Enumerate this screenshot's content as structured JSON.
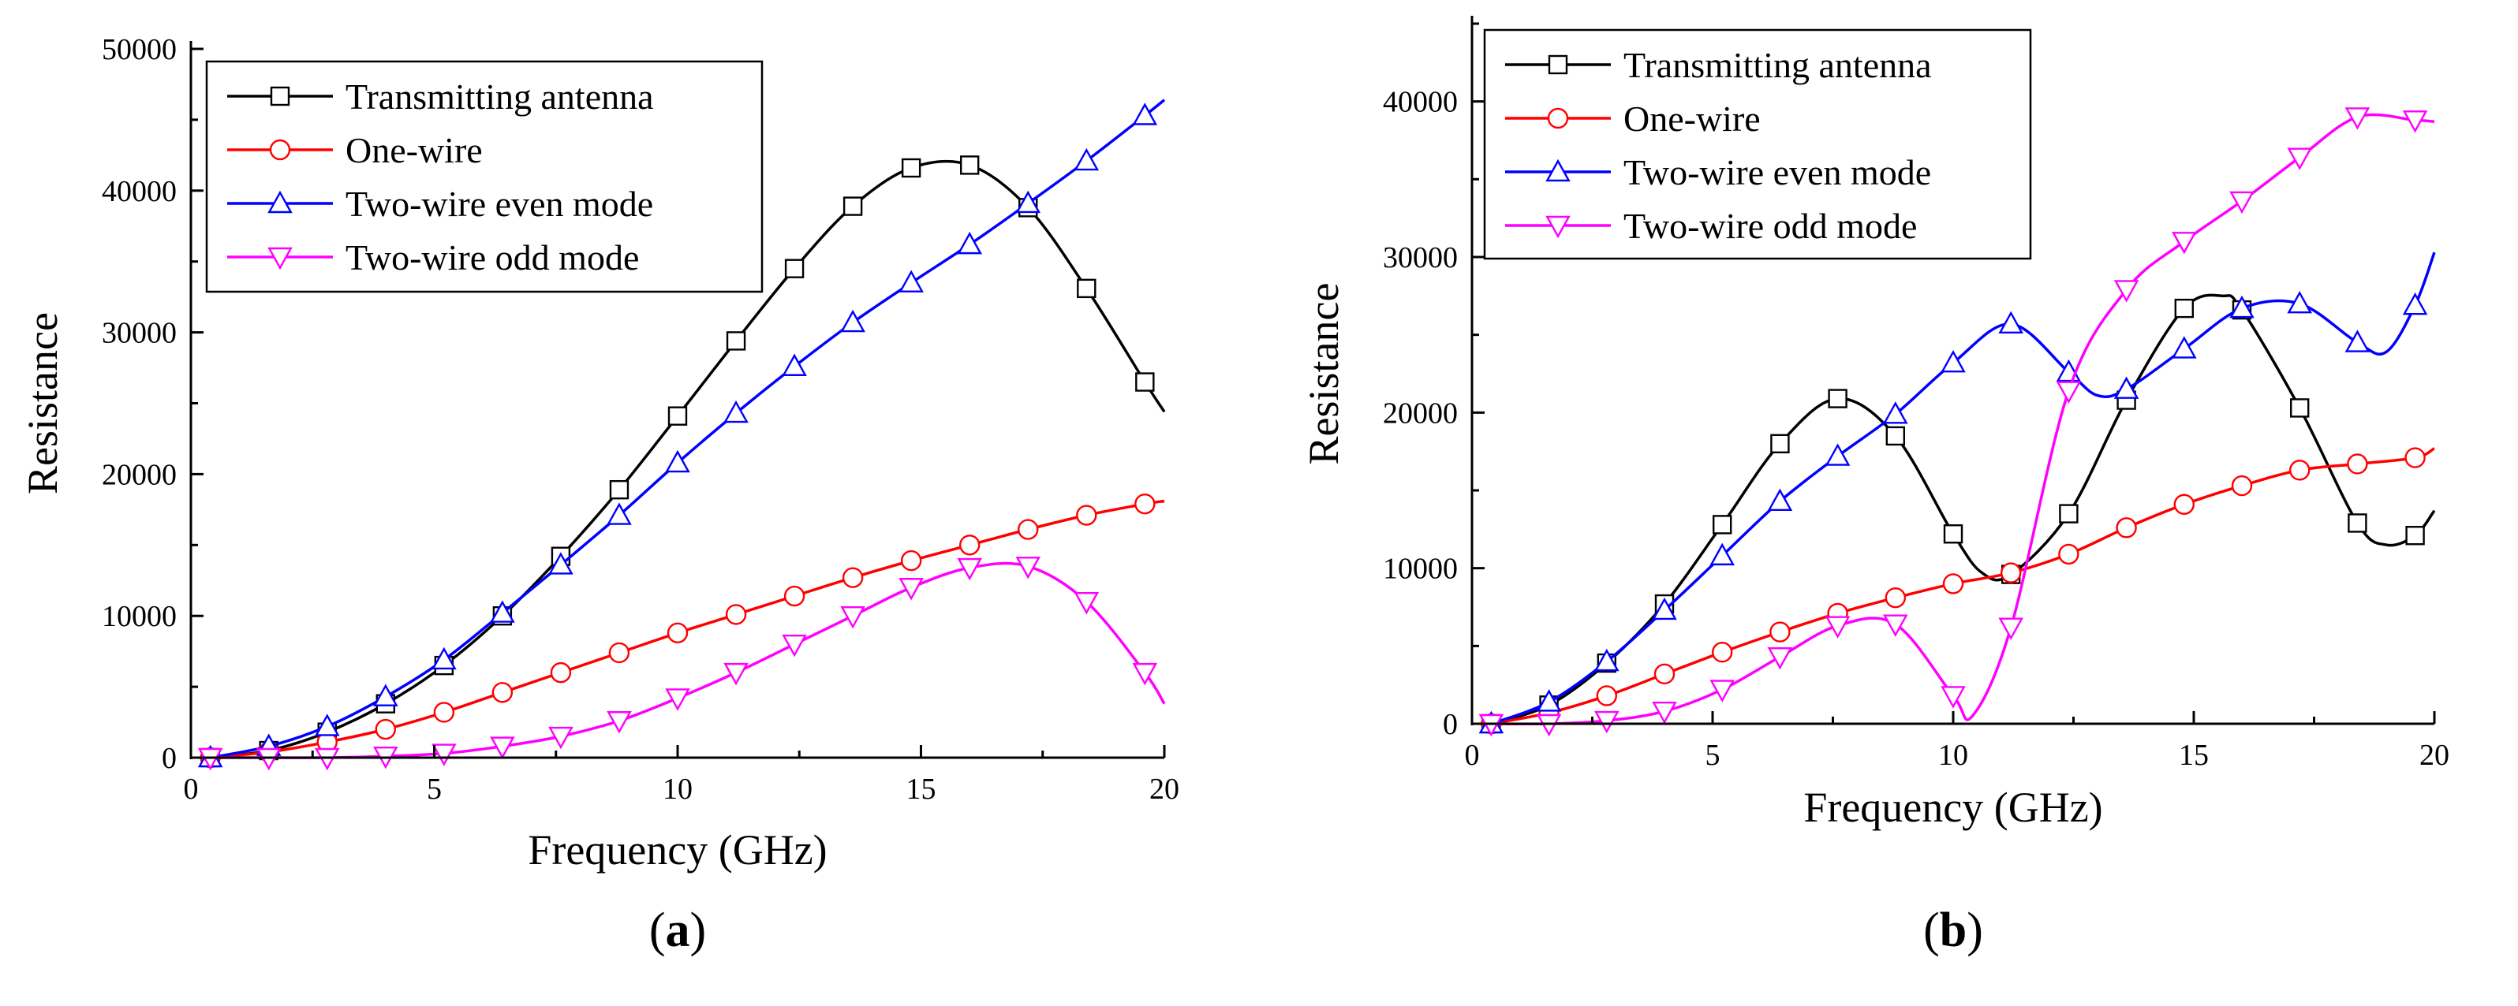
{
  "chart_data": [
    {
      "type": "line",
      "panel_label": "a",
      "xlabel": "Frequency (GHz)",
      "ylabel": "Resistance",
      "xlim": [
        0,
        20
      ],
      "ylim": [
        0,
        50000
      ],
      "x_ticks": [
        0,
        5,
        10,
        15,
        20
      ],
      "y_ticks": [
        0,
        10000,
        20000,
        30000,
        40000,
        50000
      ],
      "legend_position": "top-left",
      "series": [
        {
          "name": "Transmitting antenna",
          "color": "#000000",
          "marker": "square",
          "x": [
            0.4,
            1.6,
            2.8,
            4.0,
            5.2,
            6.4,
            7.6,
            8.8,
            10.0,
            11.2,
            12.4,
            13.6,
            14.8,
            16.0,
            17.2,
            18.4,
            19.6,
            20.0
          ],
          "y": [
            0,
            500,
            1800,
            3800,
            6500,
            10000,
            14200,
            18900,
            24100,
            29400,
            34500,
            38900,
            41600,
            41800,
            38800,
            33100,
            26500,
            24400
          ]
        },
        {
          "name": "One-wire",
          "color": "#ff0000",
          "marker": "circle",
          "x": [
            0.4,
            1.6,
            2.8,
            4.0,
            5.2,
            6.4,
            7.6,
            8.8,
            10.0,
            11.2,
            12.4,
            13.6,
            14.8,
            16.0,
            17.2,
            18.4,
            19.6,
            20.0
          ],
          "y": [
            0,
            400,
            1100,
            2000,
            3200,
            4600,
            6000,
            7400,
            8800,
            10100,
            11400,
            12700,
            13900,
            15000,
            16100,
            17100,
            17900,
            18100
          ]
        },
        {
          "name": "Two-wire even mode",
          "color": "#0000ff",
          "marker": "triangle-up",
          "x": [
            0.4,
            1.6,
            2.8,
            4.0,
            5.2,
            6.4,
            7.6,
            8.8,
            10.0,
            11.2,
            12.4,
            13.6,
            14.8,
            16.0,
            17.2,
            18.4,
            19.6,
            20.0
          ],
          "y": [
            0,
            800,
            2200,
            4300,
            6900,
            10200,
            13600,
            17100,
            20800,
            24300,
            27600,
            30700,
            33500,
            36200,
            39100,
            42100,
            45300,
            46400
          ]
        },
        {
          "name": "Two-wire odd mode",
          "color": "#ff00ff",
          "marker": "triangle-down",
          "x": [
            0.4,
            1.6,
            2.8,
            4.0,
            5.2,
            6.4,
            7.6,
            8.8,
            10.0,
            11.2,
            12.4,
            13.6,
            14.8,
            16.0,
            17.2,
            18.4,
            19.6,
            20.0
          ],
          "y": [
            0,
            0,
            0,
            100,
            300,
            800,
            1500,
            2600,
            4200,
            6000,
            8000,
            10000,
            12000,
            13400,
            13500,
            11000,
            6000,
            3800
          ]
        }
      ]
    },
    {
      "type": "line",
      "panel_label": "b",
      "xlabel": "Frequency (GHz)",
      "ylabel": "Resistance",
      "xlim": [
        0,
        20
      ],
      "ylim": [
        0,
        45000
      ],
      "x_ticks": [
        0,
        5,
        10,
        15,
        20
      ],
      "y_ticks": [
        0,
        10000,
        20000,
        30000,
        40000
      ],
      "legend_position": "top-left",
      "series": [
        {
          "name": "Transmitting antenna",
          "color": "#000000",
          "marker": "square",
          "x": [
            0.4,
            1.6,
            2.8,
            4.0,
            5.2,
            6.4,
            7.6,
            8.8,
            10.0,
            10.6,
            11.2,
            12.4,
            13.6,
            14.8,
            15.6,
            16.0,
            17.2,
            18.4,
            19.0,
            19.6,
            20.0
          ],
          "y": [
            0,
            1200,
            3900,
            7700,
            12800,
            18000,
            20900,
            18500,
            12200,
            9700,
            9600,
            13500,
            20800,
            26700,
            27500,
            26600,
            20300,
            12900,
            11500,
            12100,
            13700
          ]
        },
        {
          "name": "One-wire",
          "color": "#ff0000",
          "marker": "circle",
          "x": [
            0.4,
            1.6,
            2.8,
            4.0,
            5.2,
            6.4,
            7.6,
            8.8,
            10.0,
            11.2,
            12.4,
            13.6,
            14.8,
            16.0,
            17.2,
            18.4,
            19.6,
            20.0
          ],
          "y": [
            0,
            700,
            1800,
            3200,
            4600,
            5900,
            7100,
            8100,
            9000,
            9700,
            10900,
            12600,
            14100,
            15300,
            16300,
            16700,
            17100,
            17700
          ]
        },
        {
          "name": "Two-wire even mode",
          "color": "#0000ff",
          "marker": "triangle-up",
          "x": [
            0.4,
            1.6,
            2.8,
            4.0,
            5.2,
            6.4,
            7.6,
            8.8,
            10.0,
            11.2,
            12.4,
            13.0,
            13.6,
            14.8,
            16.0,
            17.2,
            18.4,
            19.0,
            19.6,
            20.0
          ],
          "y": [
            0,
            1400,
            4000,
            7300,
            10800,
            14300,
            17200,
            19900,
            23200,
            25700,
            22600,
            21100,
            21500,
            24100,
            26700,
            27000,
            24500,
            23900,
            26900,
            30300
          ]
        },
        {
          "name": "Two-wire odd mode",
          "color": "#ff00ff",
          "marker": "triangle-down",
          "x": [
            0.4,
            1.6,
            2.8,
            4.0,
            5.2,
            6.4,
            7.6,
            8.8,
            10.0,
            10.4,
            11.2,
            12.4,
            13.6,
            14.8,
            16.0,
            17.2,
            18.4,
            19.6,
            20.0
          ],
          "y": [
            0,
            0,
            200,
            800,
            2200,
            4300,
            6300,
            6400,
            1800,
            500,
            6200,
            21400,
            27900,
            31000,
            33600,
            36400,
            39000,
            38800,
            38700
          ]
        }
      ]
    }
  ]
}
